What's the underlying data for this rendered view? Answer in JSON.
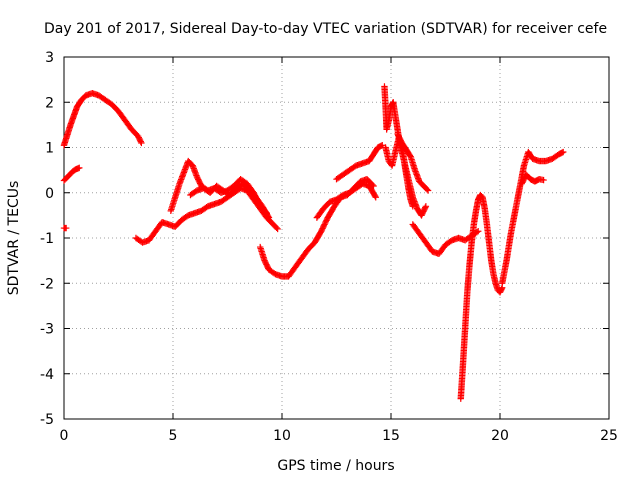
{
  "chart_data": {
    "type": "scatter",
    "title": "Day 201 of 2017, Sidereal Day-to-day VTEC variation (SDTVAR) for receiver cefe",
    "xlabel": "GPS time / hours",
    "ylabel": "SDTVAR / TECUs",
    "xlim": [
      0,
      25
    ],
    "ylim": [
      -5,
      3
    ],
    "xticks": [
      "0",
      "5",
      "10",
      "15",
      "20",
      "25"
    ],
    "yticks": [
      "-5",
      "-4",
      "-3",
      "-2",
      "-1",
      "0",
      "1",
      "2",
      "3"
    ],
    "grid": true,
    "marker": "plus",
    "color": "#ff0000",
    "series": [
      {
        "name": "seg1",
        "x": [
          0.0,
          0.1,
          0.2,
          0.3,
          0.45,
          0.6,
          0.8,
          1.0,
          1.3,
          1.6,
          1.9,
          2.2,
          2.5,
          2.8,
          3.1,
          3.4,
          3.55
        ],
        "y": [
          1.05,
          1.2,
          1.35,
          1.5,
          1.7,
          1.9,
          2.05,
          2.15,
          2.2,
          2.15,
          2.05,
          1.95,
          1.8,
          1.6,
          1.4,
          1.25,
          1.1
        ]
      },
      {
        "name": "seg2",
        "x": [
          0.0,
          0.1,
          0.2,
          0.3,
          0.4,
          0.55,
          0.7
        ],
        "y": [
          0.27,
          0.32,
          0.37,
          0.42,
          0.47,
          0.52,
          0.55
        ]
      },
      {
        "name": "seg3",
        "x": [
          0.0,
          0.1
        ],
        "y": [
          -0.78,
          -0.78
        ]
      },
      {
        "name": "seg4",
        "x": [
          3.3,
          3.6,
          3.9,
          4.2,
          4.5,
          4.8,
          5.1,
          5.4,
          5.7,
          6.0,
          6.3,
          6.6,
          6.9,
          7.2,
          7.5,
          7.8,
          8.1,
          8.4,
          8.7,
          9.0,
          9.3,
          9.6,
          9.8
        ],
        "y": [
          -1.0,
          -1.1,
          -1.05,
          -0.85,
          -0.65,
          -0.7,
          -0.75,
          -0.6,
          -0.5,
          -0.45,
          -0.4,
          -0.3,
          -0.25,
          -0.2,
          -0.1,
          0.0,
          0.1,
          0.05,
          -0.15,
          -0.35,
          -0.55,
          -0.7,
          -0.8
        ]
      },
      {
        "name": "seg5",
        "x": [
          4.9,
          5.1,
          5.3,
          5.5,
          5.7,
          5.9,
          6.1,
          6.3,
          6.6,
          6.9,
          7.2,
          7.5,
          7.8,
          8.1,
          8.4,
          8.7,
          9.0,
          9.3
        ],
        "y": [
          -0.4,
          -0.1,
          0.2,
          0.45,
          0.7,
          0.6,
          0.35,
          0.15,
          0.05,
          0.1,
          0.0,
          0.05,
          0.15,
          0.3,
          0.2,
          0.0,
          -0.3,
          -0.45
        ]
      },
      {
        "name": "seg6",
        "x": [
          5.8,
          6.1,
          6.4,
          6.7,
          7.0,
          7.3,
          7.6,
          7.9,
          8.2,
          8.5,
          8.8,
          9.1,
          9.4
        ],
        "y": [
          -0.05,
          0.05,
          0.1,
          0.0,
          0.15,
          0.05,
          -0.05,
          0.1,
          0.2,
          0.1,
          -0.1,
          -0.3,
          -0.55
        ]
      },
      {
        "name": "seg7",
        "x": [
          9.0,
          9.2,
          9.4,
          9.7,
          10.0,
          10.3,
          10.6,
          10.9,
          11.2,
          11.5,
          11.8,
          12.1,
          12.4,
          12.7,
          13.0,
          13.3,
          13.6,
          13.9,
          14.2
        ],
        "y": [
          -1.2,
          -1.5,
          -1.7,
          -1.8,
          -1.85,
          -1.85,
          -1.65,
          -1.45,
          -1.25,
          -1.1,
          -0.85,
          -0.55,
          -0.3,
          -0.1,
          -0.05,
          0.1,
          0.25,
          0.3,
          0.15
        ]
      },
      {
        "name": "seg8",
        "x": [
          11.6,
          11.9,
          12.2,
          12.5,
          12.8,
          13.1,
          13.4,
          13.7,
          14.0,
          14.3
        ],
        "y": [
          -0.55,
          -0.35,
          -0.2,
          -0.15,
          -0.05,
          0.0,
          0.1,
          0.2,
          0.15,
          -0.1
        ]
      },
      {
        "name": "seg9",
        "x": [
          12.5,
          12.8,
          13.1,
          13.4,
          13.7,
          14.0,
          14.2,
          14.4,
          14.6
        ],
        "y": [
          0.3,
          0.4,
          0.5,
          0.6,
          0.65,
          0.7,
          0.85,
          1.0,
          1.05
        ]
      },
      {
        "name": "seg10",
        "x": [
          14.7,
          14.75,
          14.8,
          14.9,
          15.0,
          15.1,
          15.2,
          15.3,
          15.4,
          15.5,
          15.6,
          15.7,
          15.8,
          15.9,
          16.0
        ],
        "y": [
          2.35,
          1.9,
          1.4,
          1.6,
          1.9,
          2.0,
          1.7,
          1.4,
          1.1,
          0.9,
          0.7,
          0.4,
          0.1,
          -0.15,
          -0.3
        ]
      },
      {
        "name": "seg11",
        "x": [
          15.3,
          15.5,
          15.7,
          15.9,
          16.1,
          16.3,
          16.5,
          16.7
        ],
        "y": [
          1.3,
          1.1,
          0.95,
          0.8,
          0.5,
          0.25,
          0.15,
          0.05
        ]
      },
      {
        "name": "seg12",
        "x": [
          14.75,
          14.9,
          15.05,
          15.2,
          15.35,
          15.5,
          15.65,
          15.8,
          16.0,
          16.2,
          16.4,
          16.6
        ],
        "y": [
          1.0,
          0.7,
          0.6,
          0.9,
          1.2,
          1.0,
          0.6,
          0.3,
          -0.1,
          -0.35,
          -0.5,
          -0.3
        ]
      },
      {
        "name": "seg13",
        "x": [
          16.0,
          16.3,
          16.6,
          16.9,
          17.2,
          17.5,
          17.8,
          18.1,
          18.4,
          18.7,
          19.0
        ],
        "y": [
          -0.7,
          -0.9,
          -1.1,
          -1.3,
          -1.35,
          -1.15,
          -1.05,
          -1.0,
          -1.05,
          -0.95,
          -0.85
        ]
      },
      {
        "name": "seg14",
        "x": [
          18.2,
          18.3,
          18.4,
          18.5,
          18.6,
          18.7,
          18.8,
          18.9,
          19.0,
          19.1,
          19.2,
          19.3,
          19.4,
          19.5,
          19.6,
          19.7,
          19.8,
          19.9,
          20.0,
          20.1
        ],
        "y": [
          -4.55,
          -3.8,
          -3.0,
          -2.2,
          -1.6,
          -1.1,
          -0.7,
          -0.4,
          -0.15,
          -0.05,
          -0.1,
          -0.35,
          -0.7,
          -1.1,
          -1.5,
          -1.8,
          -2.0,
          -2.15,
          -2.2,
          -2.1
        ]
      },
      {
        "name": "seg15",
        "x": [
          20.1,
          20.3,
          20.5,
          20.7,
          20.9,
          21.1,
          21.3,
          21.5,
          21.8,
          22.1,
          22.4,
          22.7,
          22.9
        ],
        "y": [
          -2.0,
          -1.5,
          -0.9,
          -0.4,
          0.1,
          0.6,
          0.9,
          0.75,
          0.7,
          0.7,
          0.75,
          0.85,
          0.9
        ]
      },
      {
        "name": "seg16",
        "x": [
          21.0,
          21.2,
          21.4,
          21.6,
          21.8,
          22.0
        ],
        "y": [
          0.2,
          0.4,
          0.3,
          0.25,
          0.3,
          0.28
        ]
      }
    ]
  }
}
